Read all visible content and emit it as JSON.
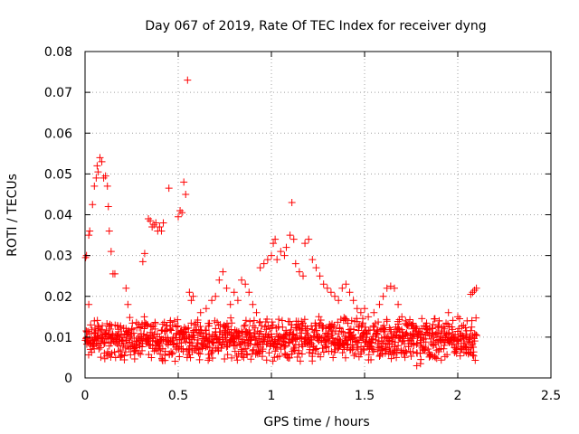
{
  "chart_data": {
    "type": "scatter",
    "title": "Day 067 of 2019, Rate Of TEC Index for receiver dyng",
    "xlabel": "GPS time / hours",
    "ylabel": "ROTI / TECUs",
    "xlim": [
      0,
      2.5
    ],
    "ylim": [
      0,
      0.08
    ],
    "x_ticks": [
      0,
      0.5,
      1,
      1.5,
      2,
      2.5
    ],
    "x_tick_labels": [
      "0",
      "0.5",
      "1",
      "1.5",
      "2",
      "2.5"
    ],
    "y_ticks": [
      0,
      0.01,
      0.02,
      0.03,
      0.04,
      0.05,
      0.06,
      0.07,
      0.08
    ],
    "y_tick_labels": [
      "0",
      "0.01",
      "0.02",
      "0.03",
      "0.04",
      "0.05",
      "0.06",
      "0.07",
      "0.08"
    ],
    "grid": true,
    "marker": "+",
    "marker_color": "#ff0000",
    "series": [
      {
        "name": "ROTI",
        "points": [
          [
            0.003,
            0.0295
          ],
          [
            0.008,
            0.03
          ],
          [
            0.02,
            0.035
          ],
          [
            0.025,
            0.036
          ],
          [
            0.04,
            0.0425
          ],
          [
            0.05,
            0.047
          ],
          [
            0.06,
            0.049
          ],
          [
            0.065,
            0.052
          ],
          [
            0.07,
            0.0505
          ],
          [
            0.08,
            0.054
          ],
          [
            0.09,
            0.053
          ],
          [
            0.1,
            0.049
          ],
          [
            0.11,
            0.0495
          ],
          [
            0.12,
            0.047
          ],
          [
            0.125,
            0.042
          ],
          [
            0.13,
            0.036
          ],
          [
            0.14,
            0.031
          ],
          [
            0.15,
            0.0255
          ],
          [
            0.16,
            0.0255
          ],
          [
            0.02,
            0.018
          ],
          [
            0.03,
            0.013
          ],
          [
            0.05,
            0.014
          ],
          [
            0.07,
            0.012
          ],
          [
            0.22,
            0.022
          ],
          [
            0.23,
            0.018
          ],
          [
            0.31,
            0.0285
          ],
          [
            0.32,
            0.0305
          ],
          [
            0.34,
            0.039
          ],
          [
            0.35,
            0.0385
          ],
          [
            0.36,
            0.037
          ],
          [
            0.37,
            0.0375
          ],
          [
            0.38,
            0.038
          ],
          [
            0.39,
            0.036
          ],
          [
            0.4,
            0.037
          ],
          [
            0.41,
            0.036
          ],
          [
            0.42,
            0.038
          ],
          [
            0.45,
            0.0465
          ],
          [
            0.5,
            0.0395
          ],
          [
            0.51,
            0.041
          ],
          [
            0.52,
            0.0405
          ],
          [
            0.53,
            0.048
          ],
          [
            0.54,
            0.045
          ],
          [
            0.55,
            0.073
          ],
          [
            0.56,
            0.021
          ],
          [
            0.57,
            0.019
          ],
          [
            0.58,
            0.02
          ],
          [
            0.62,
            0.016
          ],
          [
            0.65,
            0.017
          ],
          [
            0.68,
            0.019
          ],
          [
            0.7,
            0.02
          ],
          [
            0.72,
            0.024
          ],
          [
            0.74,
            0.026
          ],
          [
            0.76,
            0.022
          ],
          [
            0.78,
            0.018
          ],
          [
            0.8,
            0.021
          ],
          [
            0.82,
            0.019
          ],
          [
            0.84,
            0.024
          ],
          [
            0.86,
            0.023
          ],
          [
            0.88,
            0.021
          ],
          [
            0.9,
            0.018
          ],
          [
            0.92,
            0.016
          ],
          [
            0.94,
            0.027
          ],
          [
            0.96,
            0.028
          ],
          [
            0.98,
            0.029
          ],
          [
            1.0,
            0.03
          ],
          [
            1.01,
            0.033
          ],
          [
            1.02,
            0.034
          ],
          [
            1.03,
            0.029
          ],
          [
            1.05,
            0.031
          ],
          [
            1.07,
            0.03
          ],
          [
            1.08,
            0.032
          ],
          [
            1.1,
            0.035
          ],
          [
            1.11,
            0.043
          ],
          [
            1.12,
            0.034
          ],
          [
            1.13,
            0.028
          ],
          [
            1.15,
            0.026
          ],
          [
            1.17,
            0.025
          ],
          [
            1.18,
            0.033
          ],
          [
            1.2,
            0.034
          ],
          [
            1.22,
            0.029
          ],
          [
            1.24,
            0.027
          ],
          [
            1.26,
            0.025
          ],
          [
            1.28,
            0.023
          ],
          [
            1.3,
            0.022
          ],
          [
            1.32,
            0.021
          ],
          [
            1.34,
            0.02
          ],
          [
            1.36,
            0.019
          ],
          [
            1.38,
            0.022
          ],
          [
            1.4,
            0.023
          ],
          [
            1.42,
            0.021
          ],
          [
            1.44,
            0.019
          ],
          [
            1.46,
            0.017
          ],
          [
            1.48,
            0.016
          ],
          [
            1.5,
            0.017
          ],
          [
            1.52,
            0.015
          ],
          [
            1.55,
            0.016
          ],
          [
            1.58,
            0.018
          ],
          [
            1.6,
            0.02
          ],
          [
            1.62,
            0.022
          ],
          [
            1.64,
            0.0225
          ],
          [
            1.66,
            0.022
          ],
          [
            1.68,
            0.018
          ],
          [
            1.7,
            0.015
          ],
          [
            1.72,
            0.014
          ],
          [
            1.75,
            0.013
          ],
          [
            1.78,
            0.003
          ],
          [
            1.8,
            0.0035
          ],
          [
            1.85,
            0.012
          ],
          [
            1.9,
            0.014
          ],
          [
            1.95,
            0.016
          ],
          [
            2.0,
            0.015
          ],
          [
            2.05,
            0.014
          ],
          [
            2.07,
            0.0205
          ],
          [
            2.08,
            0.021
          ],
          [
            2.09,
            0.0215
          ],
          [
            2.1,
            0.022
          ]
        ]
      }
    ],
    "dense_band": {
      "description": "dense cloud of points",
      "x_range": [
        0,
        2.1
      ],
      "y_range": [
        0.004,
        0.015
      ]
    }
  }
}
